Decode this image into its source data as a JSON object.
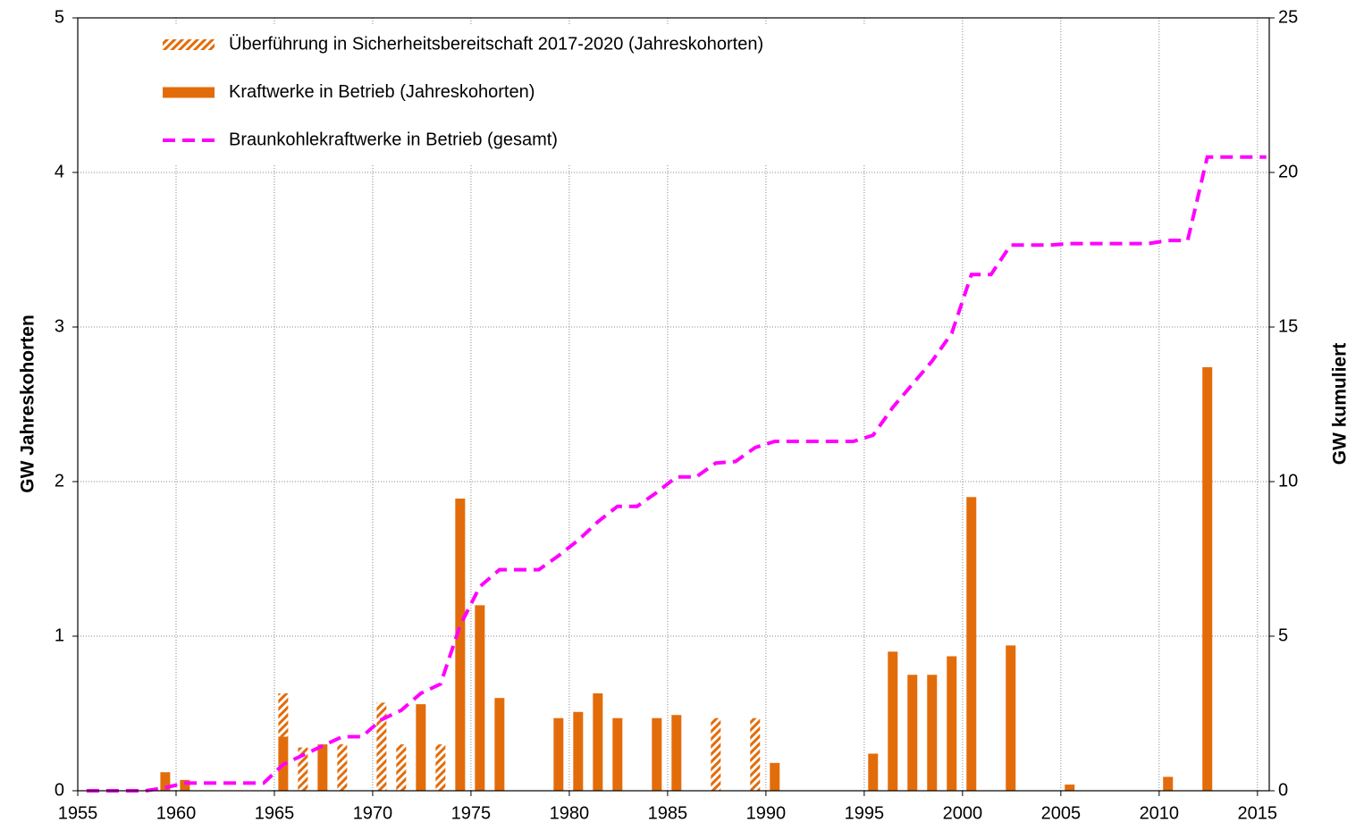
{
  "chart_data": {
    "type": "bar",
    "x": [
      1955,
      1956,
      1957,
      1958,
      1959,
      1960,
      1961,
      1962,
      1963,
      1964,
      1965,
      1966,
      1967,
      1968,
      1969,
      1970,
      1971,
      1972,
      1973,
      1974,
      1975,
      1976,
      1977,
      1978,
      1979,
      1980,
      1981,
      1982,
      1983,
      1984,
      1985,
      1986,
      1987,
      1988,
      1989,
      1990,
      1991,
      1992,
      1993,
      1994,
      1995,
      1996,
      1997,
      1998,
      1999,
      2000,
      2001,
      2002,
      2003,
      2004,
      2005,
      2006,
      2007,
      2008,
      2009,
      2010,
      2011,
      2012,
      2013,
      2014,
      2015
    ],
    "series": [
      {
        "name": "Kraftwerke in Betrieb (Jahreskohorten)",
        "color": "#e36c0a",
        "pattern": "solid",
        "values": [
          null,
          null,
          null,
          null,
          0.12,
          0.07,
          null,
          null,
          null,
          null,
          0.35,
          null,
          0.3,
          null,
          null,
          null,
          null,
          0.56,
          null,
          1.89,
          1.2,
          0.6,
          null,
          null,
          0.47,
          0.51,
          0.63,
          0.47,
          null,
          0.47,
          0.49,
          null,
          null,
          null,
          null,
          0.18,
          null,
          null,
          null,
          null,
          0.24,
          0.9,
          0.75,
          0.75,
          0.87,
          1.9,
          null,
          0.94,
          null,
          null,
          0.04,
          null,
          null,
          null,
          null,
          0.09,
          null,
          2.74,
          null,
          null,
          null
        ]
      },
      {
        "name": "Überführung in Sicherheitsbereitschaft 2017-2020 (Jahreskohorten)",
        "color": "#e36c0a",
        "pattern": "hatch",
        "values": [
          null,
          null,
          null,
          null,
          null,
          null,
          null,
          null,
          null,
          null,
          0.28,
          0.28,
          null,
          0.3,
          null,
          0.57,
          0.3,
          null,
          0.3,
          null,
          null,
          null,
          null,
          null,
          null,
          null,
          null,
          null,
          null,
          null,
          null,
          null,
          0.47,
          null,
          0.47,
          null,
          null,
          null,
          null,
          null,
          null,
          null,
          null,
          null,
          null,
          null,
          null,
          null,
          null,
          null,
          null,
          null,
          null,
          null,
          null,
          null,
          null,
          null,
          null,
          null,
          null
        ]
      },
      {
        "name": "Braunkohlekraftwerke in Betrieb (gesamt)",
        "color": "#ff00ff",
        "type": "line",
        "dash": true,
        "axis": "y2",
        "values": [
          0,
          0,
          0,
          0,
          0.1,
          0.25,
          0.25,
          0.25,
          0.25,
          0.25,
          0.85,
          1.15,
          1.45,
          1.75,
          1.75,
          2.3,
          2.6,
          3.15,
          3.45,
          5.35,
          6.6,
          7.15,
          7.15,
          7.15,
          7.6,
          8.1,
          8.7,
          9.2,
          9.2,
          9.65,
          10.15,
          10.15,
          10.6,
          10.65,
          11.1,
          11.3,
          11.3,
          11.3,
          11.3,
          11.3,
          11.5,
          12.4,
          13.15,
          13.9,
          14.8,
          16.7,
          16.7,
          17.65,
          17.65,
          17.65,
          17.7,
          17.7,
          17.7,
          17.7,
          17.7,
          17.8,
          17.8,
          20.5,
          20.5,
          20.5,
          20.5
        ]
      }
    ],
    "stacked": true,
    "y_label": "GW Jahreskohorten",
    "y2_label": "GW kumuliert",
    "xlim": [
      1955,
      2015.6
    ],
    "xticks": [
      1955,
      1960,
      1965,
      1970,
      1975,
      1980,
      1985,
      1990,
      1995,
      2000,
      2005,
      2010,
      2015
    ],
    "ylim": [
      0,
      5
    ],
    "yticks": [
      0,
      1,
      2,
      3,
      4,
      5
    ],
    "y2lim": [
      0,
      25
    ],
    "y2ticks": [
      0,
      5,
      10,
      15,
      20,
      25
    ],
    "grid": true
  }
}
